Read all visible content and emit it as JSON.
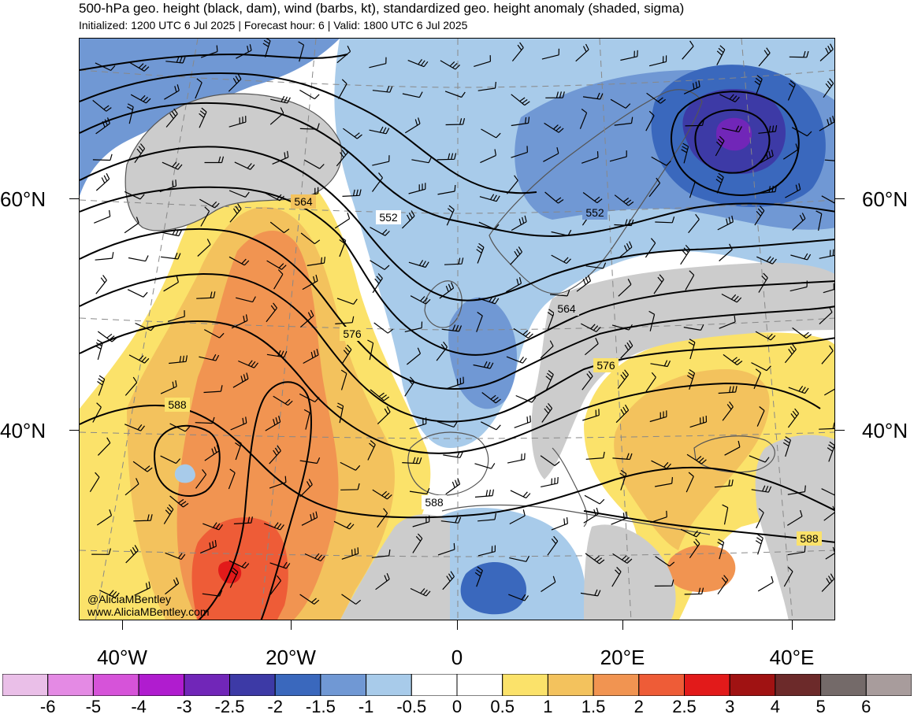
{
  "header": {
    "title": "500-hPa geo. height (black, dam), wind (barbs, kt), standardized geo. height anomaly (shaded, sigma)",
    "subtitle": "Initialized: 1200 UTC 6 Jul 2025 | Forecast hour: 6 | Valid: 1800 UTC 6 Jul 2025"
  },
  "axes": {
    "lat_labels": [
      "60°N",
      "40°N"
    ],
    "lon_labels": [
      "40°W",
      "20°W",
      "0",
      "20°E",
      "40°E"
    ]
  },
  "contour_labels": [
    "564",
    "552",
    "552",
    "576",
    "564",
    "588",
    "576",
    "588",
    "588"
  ],
  "credit": {
    "handle": "@AliciaMBentley",
    "website": "www.AliciaMBentley.com"
  },
  "colorbar": {
    "labels": [
      "-6",
      "-5",
      "-4",
      "-3",
      "-2.5",
      "-2",
      "-1.5",
      "-1",
      "-0.5",
      "0",
      "0.5",
      "1",
      "1.5",
      "2",
      "2.5",
      "3",
      "4",
      "5",
      "6"
    ],
    "colors": [
      "#eabfe8",
      "#e48ae4",
      "#d653d9",
      "#b01ccf",
      "#7126b8",
      "#3d3aa6",
      "#3a68bd",
      "#7098d4",
      "#a8cbea",
      "#ffffff",
      "#ffffff",
      "#fbe26a",
      "#f3c25d",
      "#f19451",
      "#ee5c37",
      "#e21a1a",
      "#a01212",
      "#6c2a2a",
      "#746a69",
      "#a89c9c"
    ]
  },
  "map_colors": {
    "neg_2_5": "#3d3aa6",
    "neg_2": "#3a68bd",
    "neg_1_5": "#7098d4",
    "neg_1": "#a8cbea",
    "pos_1": "#fbe26a",
    "pos_1_5": "#f3c25d",
    "pos_2": "#f19451",
    "pos_2_5": "#ee5c37",
    "pos_3": "#e21a1a",
    "land": "#cccccc",
    "coast": "#555555",
    "contour": "#000000"
  }
}
